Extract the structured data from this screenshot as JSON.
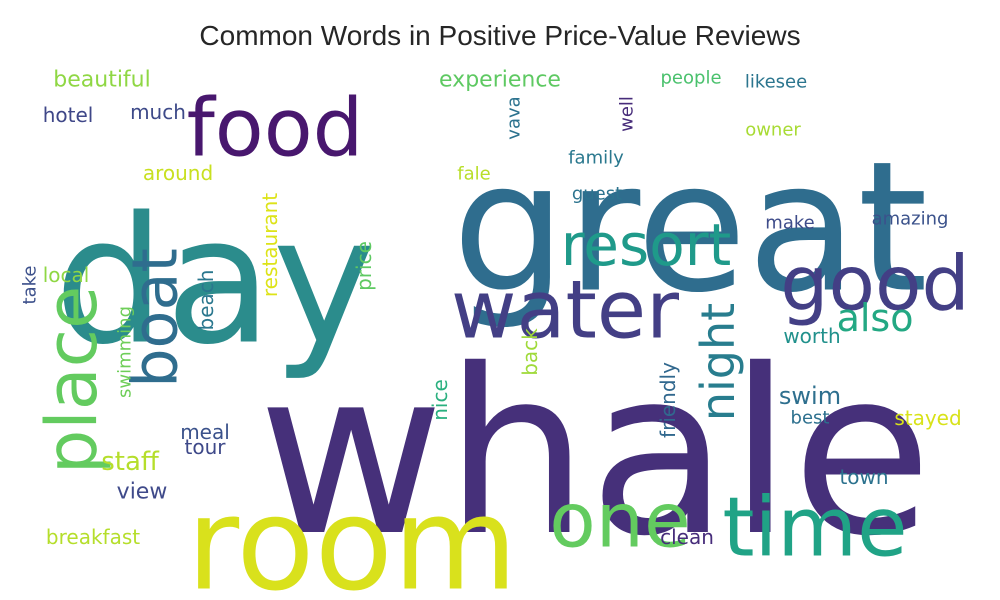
{
  "chart_data": {
    "type": "wordcloud",
    "title": "Common Words in Positive Price-Value Reviews",
    "words": [
      {
        "text": "whale",
        "weight": 1.0,
        "color": "#46307a"
      },
      {
        "text": "great",
        "weight": 0.95,
        "color": "#2f6d8e"
      },
      {
        "text": "day",
        "weight": 0.9,
        "color": "#2b8c8c"
      },
      {
        "text": "room",
        "weight": 0.82,
        "color": "#d9e11c"
      },
      {
        "text": "water",
        "weight": 0.6,
        "color": "#433f85"
      },
      {
        "text": "time",
        "weight": 0.58,
        "color": "#20a386"
      },
      {
        "text": "one",
        "weight": 0.52,
        "color": "#63cb5f"
      },
      {
        "text": "place",
        "weight": 0.52,
        "color": "#63cb5f"
      },
      {
        "text": "food",
        "weight": 0.5,
        "color": "#48176e"
      },
      {
        "text": "good",
        "weight": 0.48,
        "color": "#433f85"
      },
      {
        "text": "boat",
        "weight": 0.44,
        "color": "#2f6d8e"
      },
      {
        "text": "resort",
        "weight": 0.4,
        "color": "#1f9a8a"
      },
      {
        "text": "night",
        "weight": 0.33,
        "color": "#287d8e"
      },
      {
        "text": "also",
        "weight": 0.29,
        "color": "#23a883"
      },
      {
        "text": "staff",
        "weight": 0.18,
        "color": "#b5de2b"
      },
      {
        "text": "swim",
        "weight": 0.17,
        "color": "#2e6f8e"
      },
      {
        "text": "view",
        "weight": 0.16,
        "color": "#3f4a8a"
      },
      {
        "text": "beautiful",
        "weight": 0.14,
        "color": "#8fd744"
      },
      {
        "text": "experience",
        "weight": 0.14,
        "color": "#5ec962"
      },
      {
        "text": "tour",
        "weight": 0.14,
        "color": "#3e4989"
      },
      {
        "text": "beach",
        "weight": 0.14,
        "color": "#2a778e"
      },
      {
        "text": "breakfast",
        "weight": 0.14,
        "color": "#b5de2b"
      },
      {
        "text": "hotel",
        "weight": 0.13,
        "color": "#3f4788"
      },
      {
        "text": "much",
        "weight": 0.13,
        "color": "#3e4a89"
      },
      {
        "text": "around",
        "weight": 0.13,
        "color": "#c8e020"
      },
      {
        "text": "local",
        "weight": 0.13,
        "color": "#8fd744"
      },
      {
        "text": "restaurant",
        "weight": 0.13,
        "color": "#dde318"
      },
      {
        "text": "price",
        "weight": 0.13,
        "color": "#5ec962"
      },
      {
        "text": "swimming",
        "weight": 0.13,
        "color": "#6ece58"
      },
      {
        "text": "meal",
        "weight": 0.13,
        "color": "#3b528b"
      },
      {
        "text": "back",
        "weight": 0.13,
        "color": "#9fda3a"
      },
      {
        "text": "nice",
        "weight": 0.13,
        "color": "#2ab07f"
      },
      {
        "text": "friendly",
        "weight": 0.13,
        "color": "#31688e"
      },
      {
        "text": "clean",
        "weight": 0.13,
        "color": "#472d7b"
      },
      {
        "text": "town",
        "weight": 0.13,
        "color": "#2c728e"
      },
      {
        "text": "stayed",
        "weight": 0.13,
        "color": "#d8e219"
      },
      {
        "text": "best",
        "weight": 0.13,
        "color": "#2d708e"
      },
      {
        "text": "worth",
        "weight": 0.13,
        "color": "#21918c"
      },
      {
        "text": "make",
        "weight": 0.12,
        "color": "#3e4c8a"
      },
      {
        "text": "amazing",
        "weight": 0.12,
        "color": "#3b528b"
      },
      {
        "text": "guest",
        "weight": 0.12,
        "color": "#2c738e"
      },
      {
        "text": "family",
        "weight": 0.12,
        "color": "#2a788e"
      },
      {
        "text": "fale",
        "weight": 0.12,
        "color": "#b8de29"
      },
      {
        "text": "owner",
        "weight": 0.12,
        "color": "#a8db34"
      },
      {
        "text": "people",
        "weight": 0.12,
        "color": "#4ac16d"
      },
      {
        "text": "likesee",
        "weight": 0.12,
        "color": "#2b758e"
      },
      {
        "text": "well",
        "weight": 0.12,
        "color": "#472c7a"
      },
      {
        "text": "vava",
        "weight": 0.12,
        "color": "#2c728e"
      },
      {
        "text": "take",
        "weight": 0.12,
        "color": "#3c508b"
      }
    ]
  }
}
